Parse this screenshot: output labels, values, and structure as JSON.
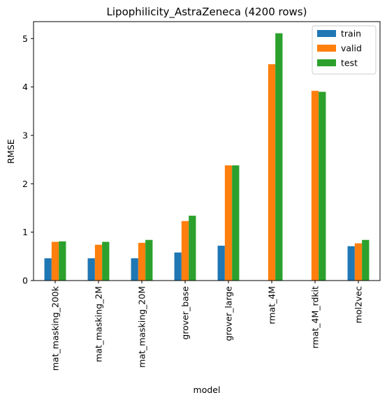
{
  "chart_data": {
    "type": "bar",
    "title": "Lipophilicity_AstraZeneca (4200 rows)",
    "xlabel": "model",
    "ylabel": "RMSE",
    "ylim": [
      0,
      5.35
    ],
    "yticks": [
      0,
      1,
      2,
      3,
      4,
      5
    ],
    "grid": false,
    "legend_position": "top-right",
    "categories": [
      "mat_masking_200k",
      "mat_masking_2M",
      "mat_masking_20M",
      "grover_base",
      "grover_large",
      "rmat_4M",
      "rmat_4M_rdkit",
      "mol2vec"
    ],
    "series": [
      {
        "name": "train",
        "color": "#1f77b4",
        "values": [
          0.46,
          0.46,
          0.46,
          0.58,
          0.72,
          null,
          null,
          0.71
        ]
      },
      {
        "name": "valid",
        "color": "#ff7f0e",
        "values": [
          0.8,
          0.74,
          0.78,
          1.23,
          2.38,
          4.47,
          3.92,
          0.77
        ]
      },
      {
        "name": "test",
        "color": "#2ca02c",
        "values": [
          0.81,
          0.8,
          0.84,
          1.34,
          2.38,
          5.11,
          3.9,
          0.84
        ]
      }
    ]
  }
}
